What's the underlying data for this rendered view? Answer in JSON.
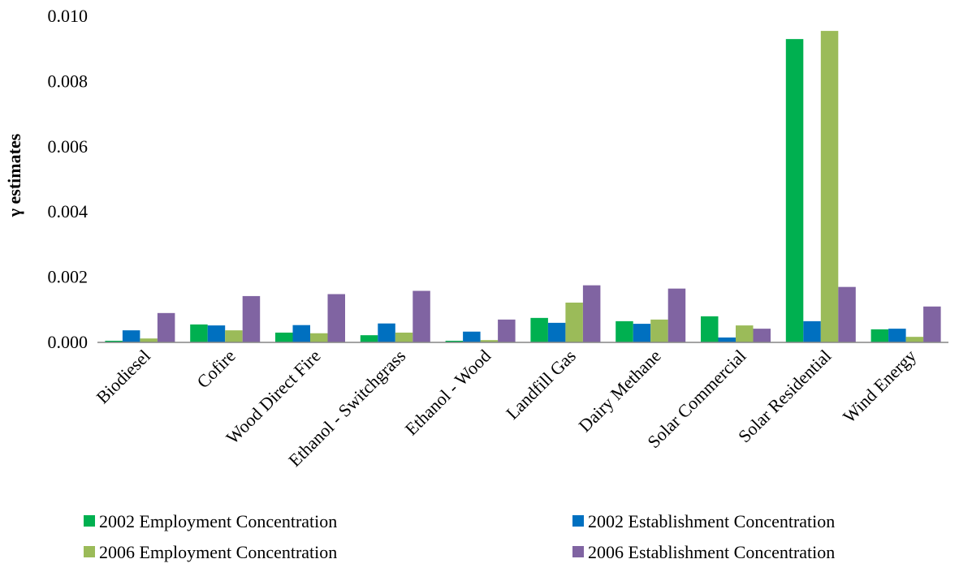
{
  "chart_data": {
    "type": "bar",
    "title": "",
    "xlabel": "",
    "ylabel": "γ estimates",
    "ylim": [
      0,
      0.01
    ],
    "yticks": [
      "0.000",
      "0.002",
      "0.004",
      "0.006",
      "0.008",
      "0.010"
    ],
    "grid": false,
    "legend_position": "bottom",
    "categories": [
      "Biodiesel",
      "Cofire",
      "Wood Direct Fire",
      "Ethanol - Switchgrass",
      "Ethanol - Wood",
      "Landfill Gas",
      "Dairy Methane",
      "Solar Commercial",
      "Solar Residential",
      "Wind Energy"
    ],
    "series": [
      {
        "name": "2002 Employment Concentration",
        "color": "#00b050",
        "values": [
          5e-05,
          0.00055,
          0.0003,
          0.00022,
          5e-05,
          0.00075,
          0.00065,
          0.0008,
          0.0093,
          0.0004
        ]
      },
      {
        "name": "2002 Establishment Concentration",
        "color": "#0070c0",
        "values": [
          0.00037,
          0.00052,
          0.00053,
          0.00058,
          0.00033,
          0.0006,
          0.00057,
          0.00015,
          0.00065,
          0.00042
        ]
      },
      {
        "name": "2006 Employment Concentration",
        "color": "#9bbb59",
        "values": [
          0.00012,
          0.00037,
          0.00028,
          0.0003,
          7e-05,
          0.00122,
          0.0007,
          0.00052,
          0.00955,
          0.00017
        ]
      },
      {
        "name": "2006 Establishment Concentration",
        "color": "#8064a2",
        "values": [
          0.0009,
          0.00142,
          0.00148,
          0.00158,
          0.0007,
          0.00175,
          0.00165,
          0.00042,
          0.0017,
          0.0011
        ]
      }
    ]
  }
}
